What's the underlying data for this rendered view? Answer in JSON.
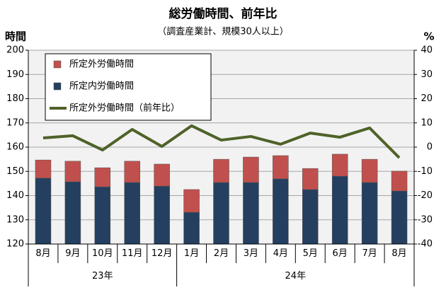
{
  "chart_data": {
    "type": "bar",
    "title": "総労働時間、前年比",
    "subtitle": "（調査産業計、規模30人以上）",
    "y_label": "時間",
    "y2_label": "%",
    "categories": [
      "8月",
      "9月",
      "10月",
      "11月",
      "12月",
      "1月",
      "2月",
      "3月",
      "4月",
      "5月",
      "6月",
      "7月",
      "8月"
    ],
    "x_groups": [
      {
        "label": "23年",
        "count": 5
      },
      {
        "label": "24年",
        "count": 8
      }
    ],
    "series": [
      {
        "name": "所定外労働時間",
        "type": "bar",
        "color": "#c0504d",
        "values": [
          7.5,
          8.5,
          7.9,
          8.8,
          9.1,
          9.4,
          9.6,
          10.5,
          9.6,
          8.7,
          9.1,
          9.6,
          8.2
        ]
      },
      {
        "name": "所定内労働時間",
        "type": "bar",
        "color": "#243f60",
        "values": [
          147.2,
          145.7,
          143.6,
          145.4,
          143.9,
          133.1,
          145.4,
          145.4,
          146.9,
          142.5,
          148.0,
          145.4,
          141.9
        ]
      },
      {
        "name": "所定外労働時間（前年比）",
        "type": "line",
        "axis": "y2",
        "color": "#4f6228",
        "values": [
          3.8,
          4.7,
          -1.2,
          7.3,
          0.3,
          8.8,
          2.9,
          4.4,
          1.2,
          5.8,
          4.1,
          7.9,
          -4.4
        ]
      }
    ],
    "ylim": [
      120,
      200
    ],
    "yticks": [
      120,
      130,
      140,
      150,
      160,
      170,
      180,
      190,
      200
    ],
    "y2lim": [
      -40,
      40
    ],
    "y2ticks": [
      -40,
      -30,
      -20,
      -10,
      0,
      10,
      20,
      30,
      40
    ],
    "grid": true,
    "legend": "upper left"
  }
}
